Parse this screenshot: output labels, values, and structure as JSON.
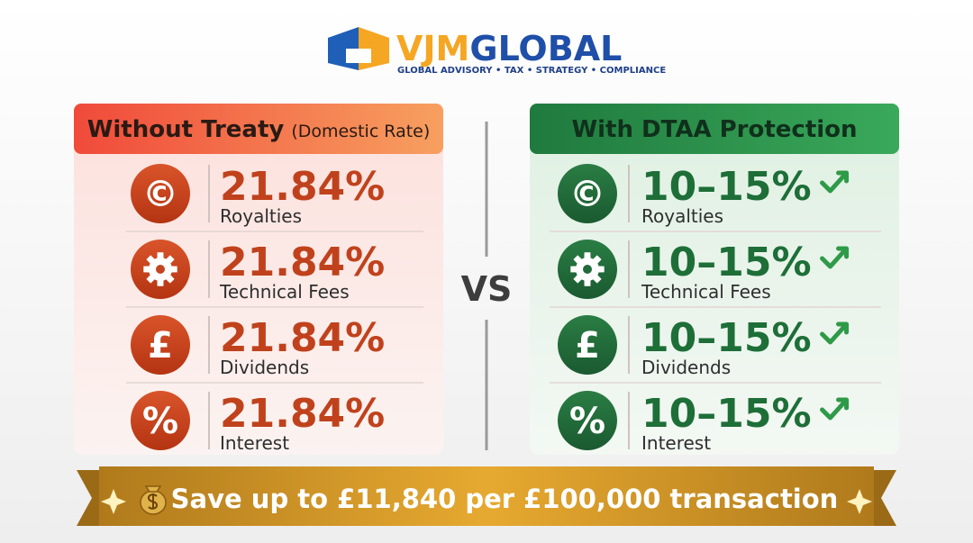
{
  "brand": {
    "primary": "VJM",
    "secondary": "GLOBAL",
    "tagline": "GLOBAL ADVISORY • TAX • STRATEGY • COMPLIANCE"
  },
  "left": {
    "title": "Without Treaty",
    "subtitle": "(Domestic Rate)",
    "rows": [
      {
        "icon": "©",
        "value": "21.84%",
        "label": "Royalties"
      },
      {
        "value": "21.84%",
        "label": "Technical Fees"
      },
      {
        "icon": "£",
        "value": "21.84%",
        "label": "Dividends"
      },
      {
        "icon": "%",
        "value": "21.84%",
        "label": "Interest"
      }
    ]
  },
  "right": {
    "title": "With DTAA Protection",
    "rows": [
      {
        "icon": "©",
        "value": "10–15%",
        "label": "Royalties"
      },
      {
        "value": "10–15%",
        "label": "Technical Fees"
      },
      {
        "icon": "£",
        "value": "10–15%",
        "label": "Dividends"
      },
      {
        "icon": "%",
        "value": "10–15%",
        "label": "Interest"
      }
    ]
  },
  "versus": "VS",
  "banner": "Save up to £11,840 per £100,000 transaction"
}
